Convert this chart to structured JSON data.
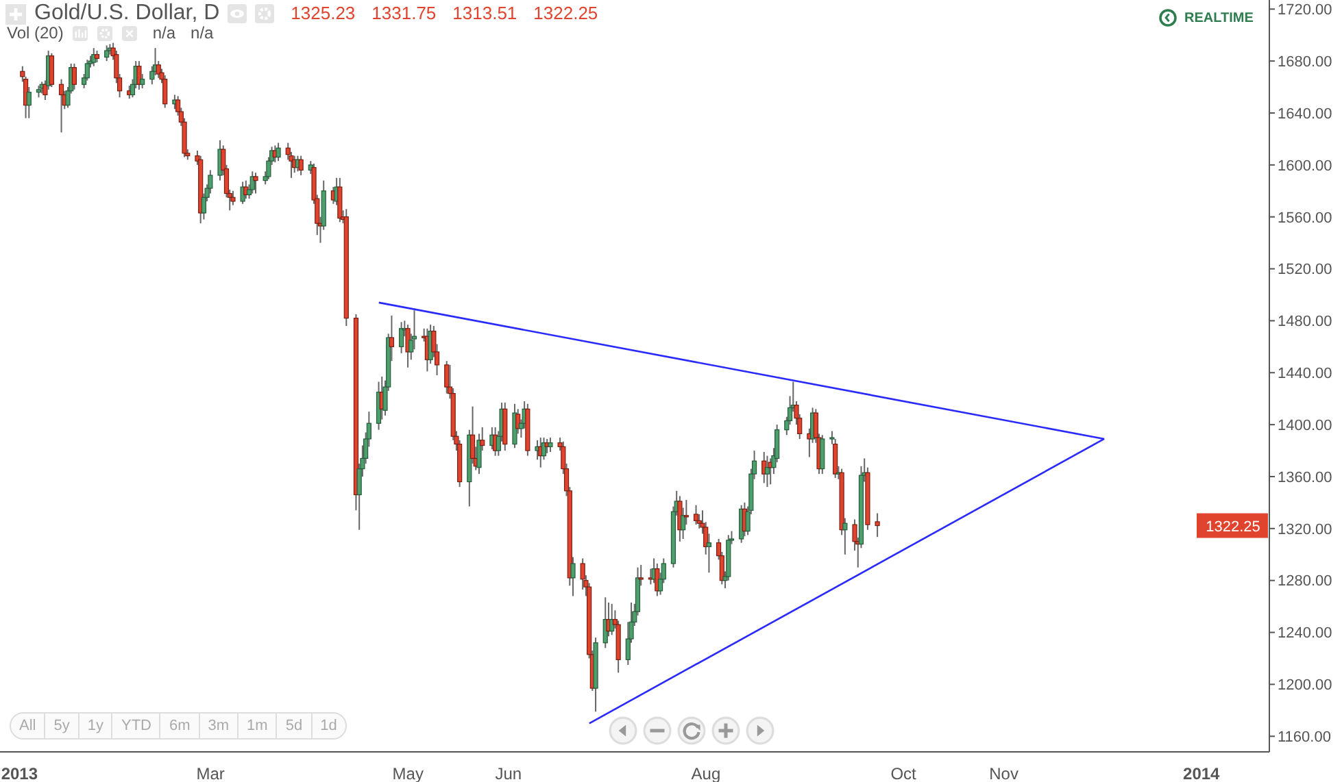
{
  "chart_data": {
    "type": "candlestick",
    "title": "Gold/U.S. Dollar, D",
    "annotations": [
      "1325.23",
      "1331.75",
      "1313.51",
      "1322.25",
      "Vol (20)",
      "n/a",
      "n/a",
      "REALTIME",
      "All",
      "5y",
      "1y",
      "YTD",
      "6m",
      "3m",
      "1m",
      "5d",
      "1d",
      "1322.25"
    ],
    "x": [
      "2013-01-02",
      "2013-01-03",
      "2013-01-04",
      "2013-01-07",
      "2013-01-08",
      "2013-01-09",
      "2013-01-10",
      "2013-01-11",
      "2013-01-14",
      "2013-01-15",
      "2013-01-16",
      "2013-01-17",
      "2013-01-18",
      "2013-01-21",
      "2013-01-22",
      "2013-01-23",
      "2013-01-24",
      "2013-01-25",
      "2013-01-28",
      "2013-01-29",
      "2013-01-30",
      "2013-01-31",
      "2013-02-01",
      "2013-02-04",
      "2013-02-05",
      "2013-02-06",
      "2013-02-07",
      "2013-02-08",
      "2013-02-11",
      "2013-02-12",
      "2013-02-13",
      "2013-02-14",
      "2013-02-15",
      "2013-02-18",
      "2013-02-19",
      "2013-02-20",
      "2013-02-21",
      "2013-02-22",
      "2013-02-25",
      "2013-02-26",
      "2013-02-27",
      "2013-02-28",
      "2013-03-01",
      "2013-03-04",
      "2013-03-05",
      "2013-03-06",
      "2013-03-07",
      "2013-03-08",
      "2013-03-11",
      "2013-03-12",
      "2013-03-13",
      "2013-03-14",
      "2013-03-15",
      "2013-03-18",
      "2013-03-19",
      "2013-03-20",
      "2013-03-21",
      "2013-03-22",
      "2013-03-25",
      "2013-03-26",
      "2013-03-27",
      "2013-03-28",
      "2013-03-29",
      "2013-04-01",
      "2013-04-02",
      "2013-04-03",
      "2013-04-04",
      "2013-04-05",
      "2013-04-08",
      "2013-04-09",
      "2013-04-10",
      "2013-04-11",
      "2013-04-12",
      "2013-04-15",
      "2013-04-16",
      "2013-04-17",
      "2013-04-18",
      "2013-04-19",
      "2013-04-22",
      "2013-04-23",
      "2013-04-24",
      "2013-04-25",
      "2013-04-26",
      "2013-04-29",
      "2013-04-30",
      "2013-05-01",
      "2013-05-02",
      "2013-05-03",
      "2013-05-06",
      "2013-05-07",
      "2013-05-08",
      "2013-05-09",
      "2013-05-10",
      "2013-05-13",
      "2013-05-14",
      "2013-05-15",
      "2013-05-16",
      "2013-05-17",
      "2013-05-20",
      "2013-05-21",
      "2013-05-22",
      "2013-05-23",
      "2013-05-24",
      "2013-05-27",
      "2013-05-28",
      "2013-05-29",
      "2013-05-30",
      "2013-05-31",
      "2013-06-03",
      "2013-06-04",
      "2013-06-05",
      "2013-06-06",
      "2013-06-07",
      "2013-06-10",
      "2013-06-11",
      "2013-06-12",
      "2013-06-13",
      "2013-06-14",
      "2013-06-17",
      "2013-06-18",
      "2013-06-19",
      "2013-06-20",
      "2013-06-21",
      "2013-06-24",
      "2013-06-25",
      "2013-06-26",
      "2013-06-27",
      "2013-06-28",
      "2013-07-01",
      "2013-07-02",
      "2013-07-03",
      "2013-07-04",
      "2013-07-05",
      "2013-07-08",
      "2013-07-09",
      "2013-07-10",
      "2013-07-11",
      "2013-07-12",
      "2013-07-15",
      "2013-07-16",
      "2013-07-17",
      "2013-07-18",
      "2013-07-19",
      "2013-07-22",
      "2013-07-23",
      "2013-07-24",
      "2013-07-25",
      "2013-07-26",
      "2013-07-29",
      "2013-07-30",
      "2013-07-31",
      "2013-08-01",
      "2013-08-02",
      "2013-08-05",
      "2013-08-06",
      "2013-08-07",
      "2013-08-08",
      "2013-08-09",
      "2013-08-12",
      "2013-08-13",
      "2013-08-14",
      "2013-08-15",
      "2013-08-16",
      "2013-08-19",
      "2013-08-20",
      "2013-08-21",
      "2013-08-22",
      "2013-08-23",
      "2013-08-26",
      "2013-08-27",
      "2013-08-28",
      "2013-08-29",
      "2013-08-30",
      "2013-09-02",
      "2013-09-03",
      "2013-09-04",
      "2013-09-05",
      "2013-09-06",
      "2013-09-09",
      "2013-09-10",
      "2013-09-11",
      "2013-09-12",
      "2013-09-13",
      "2013-09-16",
      "2013-09-17",
      "2013-09-18",
      "2013-09-19",
      "2013-09-20",
      "2013-09-23"
    ],
    "ohlc": [
      [
        1672,
        1676,
        1664,
        1668
      ],
      [
        1666,
        1668,
        1636,
        1646
      ],
      [
        1646,
        1660,
        1636,
        1656
      ],
      [
        1656,
        1661,
        1652,
        1658
      ],
      [
        1659,
        1664,
        1655,
        1662
      ],
      [
        1662,
        1665,
        1650,
        1654
      ],
      [
        1661,
        1688,
        1658,
        1684
      ],
      [
        1684,
        1686,
        1660,
        1662
      ],
      [
        1662,
        1666,
        1625,
        1654
      ],
      [
        1654,
        1657,
        1643,
        1646
      ],
      [
        1646,
        1660,
        1644,
        1657
      ],
      [
        1657,
        1678,
        1655,
        1675
      ],
      [
        1675,
        1678,
        1658,
        1662
      ],
      [
        1662,
        1670,
        1659,
        1667
      ],
      [
        1667,
        1681,
        1665,
        1678
      ],
      [
        1678,
        1684,
        1675,
        1680
      ],
      [
        1679,
        1690,
        1676,
        1685
      ],
      [
        1685,
        1688,
        1679,
        1682
      ],
      [
        1683,
        1692,
        1680,
        1688
      ],
      [
        1688,
        1693,
        1685,
        1690
      ],
      [
        1690,
        1694,
        1681,
        1684
      ],
      [
        1685,
        1688,
        1663,
        1667
      ],
      [
        1667,
        1670,
        1652,
        1657
      ],
      [
        1657,
        1661,
        1651,
        1654
      ],
      [
        1654,
        1666,
        1652,
        1662
      ],
      [
        1662,
        1680,
        1659,
        1676
      ],
      [
        1676,
        1680,
        1658,
        1662
      ],
      [
        1662,
        1670,
        1659,
        1666
      ],
      [
        1666,
        1676,
        1662,
        1672
      ],
      [
        1672,
        1690,
        1669,
        1677
      ],
      [
        1677,
        1680,
        1667,
        1670
      ],
      [
        1671,
        1674,
        1663,
        1666
      ],
      [
        1666,
        1669,
        1644,
        1647
      ],
      [
        1647,
        1654,
        1643,
        1650
      ],
      [
        1650,
        1653,
        1638,
        1641
      ],
      [
        1641,
        1644,
        1630,
        1633
      ],
      [
        1633,
        1636,
        1606,
        1609
      ],
      [
        1609,
        1612,
        1604,
        1607
      ],
      [
        1607,
        1611,
        1600,
        1603
      ],
      [
        1604,
        1607,
        1555,
        1563
      ],
      [
        1563,
        1578,
        1558,
        1575
      ],
      [
        1575,
        1585,
        1572,
        1582
      ],
      [
        1582,
        1596,
        1578,
        1592
      ],
      [
        1592,
        1619,
        1588,
        1612
      ],
      [
        1612,
        1615,
        1592,
        1596
      ],
      [
        1597,
        1600,
        1575,
        1578
      ],
      [
        1578,
        1581,
        1565,
        1575
      ],
      [
        1575,
        1580,
        1569,
        1572
      ],
      [
        1572,
        1587,
        1570,
        1583
      ],
      [
        1583,
        1588,
        1574,
        1577
      ],
      [
        1577,
        1585,
        1574,
        1581
      ],
      [
        1581,
        1595,
        1578,
        1591
      ],
      [
        1591,
        1594,
        1578,
        1588
      ],
      [
        1588,
        1595,
        1585,
        1591
      ],
      [
        1591,
        1606,
        1589,
        1603
      ],
      [
        1603,
        1614,
        1600,
        1611
      ],
      [
        1611,
        1615,
        1602,
        1606
      ],
      [
        1606,
        1617,
        1603,
        1613
      ],
      [
        1613,
        1617,
        1604,
        1608
      ],
      [
        1607,
        1610,
        1590,
        1603
      ],
      [
        1604,
        1607,
        1594,
        1598
      ],
      [
        1598,
        1607,
        1595,
        1604
      ],
      [
        1604,
        1607,
        1592,
        1596
      ],
      [
        1596,
        1603,
        1593,
        1600
      ],
      [
        1598,
        1601,
        1570,
        1573
      ],
      [
        1574,
        1577,
        1546,
        1555
      ],
      [
        1555,
        1560,
        1540,
        1553
      ],
      [
        1553,
        1588,
        1550,
        1580
      ],
      [
        1580,
        1583,
        1570,
        1573
      ],
      [
        1572,
        1590,
        1569,
        1583
      ],
      [
        1583,
        1590,
        1556,
        1559
      ],
      [
        1560,
        1565,
        1555,
        1558
      ],
      [
        1560,
        1566,
        1476,
        1482
      ],
      [
        1482,
        1485,
        1334,
        1346
      ],
      [
        1346,
        1370,
        1319,
        1366
      ],
      [
        1366,
        1384,
        1360,
        1374
      ],
      [
        1374,
        1394,
        1370,
        1389
      ],
      [
        1389,
        1410,
        1383,
        1401
      ],
      [
        1401,
        1433,
        1396,
        1425
      ],
      [
        1425,
        1437,
        1404,
        1412
      ],
      [
        1411,
        1434,
        1407,
        1429
      ],
      [
        1429,
        1470,
        1426,
        1467
      ],
      [
        1467,
        1484,
        1449,
        1460
      ],
      [
        1460,
        1479,
        1455,
        1474
      ],
      [
        1473,
        1480,
        1468,
        1474
      ],
      [
        1474,
        1477,
        1444,
        1456
      ],
      [
        1456,
        1470,
        1450,
        1465
      ],
      [
        1466,
        1488,
        1458,
        1468
      ],
      [
        1468,
        1474,
        1464,
        1467
      ],
      [
        1468,
        1474,
        1441,
        1450
      ],
      [
        1450,
        1477,
        1447,
        1472
      ],
      [
        1472,
        1476,
        1452,
        1456
      ],
      [
        1456,
        1462,
        1438,
        1446
      ],
      [
        1446,
        1449,
        1424,
        1429
      ],
      [
        1429,
        1446,
        1420,
        1424
      ],
      [
        1424,
        1428,
        1388,
        1391
      ],
      [
        1391,
        1395,
        1380,
        1385
      ],
      [
        1385,
        1388,
        1352,
        1356
      ],
      [
        1356,
        1396,
        1337,
        1392
      ],
      [
        1392,
        1414,
        1370,
        1374
      ],
      [
        1374,
        1383,
        1365,
        1368
      ],
      [
        1367,
        1393,
        1362,
        1388
      ],
      [
        1388,
        1398,
        1380,
        1384
      ],
      [
        1384,
        1398,
        1381,
        1392
      ],
      [
        1392,
        1398,
        1376,
        1380
      ],
      [
        1380,
        1395,
        1376,
        1391
      ],
      [
        1391,
        1417,
        1387,
        1412
      ],
      [
        1412,
        1417,
        1380,
        1385
      ],
      [
        1385,
        1416,
        1382,
        1409
      ],
      [
        1408,
        1412,
        1393,
        1397
      ],
      [
        1397,
        1404,
        1390,
        1401
      ],
      [
        1401,
        1418,
        1397,
        1412
      ],
      [
        1412,
        1416,
        1376,
        1380
      ],
      [
        1380,
        1388,
        1373,
        1383
      ],
      [
        1383,
        1390,
        1367,
        1376
      ],
      [
        1376,
        1390,
        1373,
        1386
      ],
      [
        1386,
        1389,
        1378,
        1383
      ],
      [
        1383,
        1390,
        1379,
        1386
      ],
      [
        1386,
        1390,
        1380,
        1383
      ],
      [
        1383,
        1387,
        1362,
        1366
      ],
      [
        1366,
        1370,
        1345,
        1349
      ],
      [
        1349,
        1352,
        1276,
        1282
      ],
      [
        1282,
        1298,
        1268,
        1293
      ],
      [
        1293,
        1297,
        1273,
        1281
      ],
      [
        1280,
        1284,
        1268,
        1275
      ],
      [
        1275,
        1278,
        1220,
        1223
      ],
      [
        1223,
        1226,
        1195,
        1197
      ],
      [
        1197,
        1236,
        1179,
        1232
      ],
      [
        1232,
        1267,
        1228,
        1250
      ],
      [
        1250,
        1263,
        1237,
        1241
      ],
      [
        1241,
        1262,
        1238,
        1250
      ],
      [
        1250,
        1257,
        1243,
        1246
      ],
      [
        1246,
        1249,
        1209,
        1219
      ],
      [
        1219,
        1248,
        1215,
        1235
      ],
      [
        1235,
        1263,
        1232,
        1248
      ],
      [
        1248,
        1262,
        1245,
        1256
      ],
      [
        1256,
        1290,
        1253,
        1282
      ],
      [
        1282,
        1292,
        1276,
        1281
      ],
      [
        1282,
        1289,
        1277,
        1281
      ],
      [
        1281,
        1297,
        1278,
        1289
      ],
      [
        1289,
        1293,
        1268,
        1272
      ],
      [
        1272,
        1286,
        1269,
        1281
      ],
      [
        1281,
        1297,
        1278,
        1293
      ],
      [
        1293,
        1337,
        1290,
        1333
      ],
      [
        1333,
        1349,
        1330,
        1341
      ],
      [
        1341,
        1345,
        1310,
        1319
      ],
      [
        1319,
        1336,
        1312,
        1330
      ],
      [
        1330,
        1342,
        1323,
        1329
      ],
      [
        1331,
        1338,
        1323,
        1326
      ],
      [
        1326,
        1331,
        1320,
        1324
      ],
      [
        1324,
        1334,
        1316,
        1321
      ],
      [
        1321,
        1325,
        1300,
        1306
      ],
      [
        1306,
        1316,
        1286,
        1309
      ],
      [
        1309,
        1312,
        1296,
        1299
      ],
      [
        1299,
        1302,
        1277,
        1280
      ],
      [
        1280,
        1287,
        1274,
        1283
      ],
      [
        1283,
        1315,
        1280,
        1311
      ],
      [
        1311,
        1318,
        1308,
        1312
      ],
      [
        1312,
        1338,
        1309,
        1335
      ],
      [
        1335,
        1340,
        1314,
        1318
      ],
      [
        1318,
        1337,
        1315,
        1333
      ],
      [
        1334,
        1366,
        1331,
        1362
      ],
      [
        1362,
        1380,
        1358,
        1372
      ],
      [
        1372,
        1379,
        1355,
        1362
      ],
      [
        1362,
        1376,
        1352,
        1367
      ],
      [
        1371,
        1374,
        1354,
        1367
      ],
      [
        1367,
        1382,
        1362,
        1376
      ],
      [
        1374,
        1400,
        1371,
        1396
      ],
      [
        1396,
        1406,
        1392,
        1403
      ],
      [
        1403,
        1422,
        1400,
        1413
      ],
      [
        1413,
        1433,
        1410,
        1415
      ],
      [
        1415,
        1418,
        1400,
        1405
      ],
      [
        1405,
        1408,
        1389,
        1393
      ],
      [
        1393,
        1397,
        1375,
        1389
      ],
      [
        1389,
        1413,
        1386,
        1409
      ],
      [
        1409,
        1412,
        1386,
        1390
      ],
      [
        1390,
        1393,
        1362,
        1366
      ],
      [
        1366,
        1392,
        1362,
        1389
      ],
      [
        1389,
        1395,
        1385,
        1390
      ],
      [
        1385,
        1389,
        1359,
        1362
      ],
      [
        1362,
        1368,
        1358,
        1363
      ],
      [
        1363,
        1366,
        1315,
        1319
      ],
      [
        1319,
        1328,
        1300,
        1324
      ],
      [
        1323,
        1327,
        1303,
        1310
      ],
      [
        1310,
        1313,
        1290,
        1308
      ],
      [
        1308,
        1368,
        1305,
        1361
      ],
      [
        1361,
        1374,
        1356,
        1363
      ],
      [
        1363,
        1367,
        1319,
        1323
      ],
      [
        1325.23,
        1331.75,
        1313.51,
        1322.25
      ]
    ],
    "series": [
      {
        "type": "line",
        "color": "#2a2aff",
        "x": [
          "2013-04-22",
          "2013-12-02"
        ],
        "values": [
          1494,
          1389
        ]
      },
      {
        "type": "line",
        "color": "#2a2aff",
        "x": [
          "2013-06-26",
          "2013-12-02"
        ],
        "values": [
          1170,
          1389
        ]
      }
    ],
    "xlim": [
      "2012-12-26",
      "2014-01-22"
    ],
    "xticks": [
      {
        "value": "2013-01-01",
        "label": "2013"
      },
      {
        "value": "2013-03-01",
        "label": "Mar"
      },
      {
        "value": "2013-05-01",
        "label": "May"
      },
      {
        "value": "2013-06-01",
        "label": "Jun"
      },
      {
        "value": "2013-08-01",
        "label": "Aug"
      },
      {
        "value": "2013-10-01",
        "label": "Oct"
      },
      {
        "value": "2013-11-01",
        "label": "Nov"
      },
      {
        "value": "2014-01-01",
        "label": "2014"
      }
    ],
    "ylim": [
      1148,
      1727
    ],
    "yticks": [
      {
        "value": 1160,
        "label": "1160.00"
      },
      {
        "value": 1200,
        "label": "1200.00"
      },
      {
        "value": 1240,
        "label": "1240.00"
      },
      {
        "value": 1280,
        "label": "1280.00"
      },
      {
        "value": 1320,
        "label": "1320.00"
      },
      {
        "value": 1360,
        "label": "1360.00"
      },
      {
        "value": 1400,
        "label": "1400.00"
      },
      {
        "value": 1440,
        "label": "1440.00"
      },
      {
        "value": 1480,
        "label": "1480.00"
      },
      {
        "value": 1520,
        "label": "1520.00"
      },
      {
        "value": 1560,
        "label": "1560.00"
      },
      {
        "value": 1600,
        "label": "1600.00"
      },
      {
        "value": 1640,
        "label": "1640.00"
      },
      {
        "value": 1680,
        "label": "1680.00"
      },
      {
        "value": 1720,
        "label": "1720.00"
      }
    ]
  }
}
